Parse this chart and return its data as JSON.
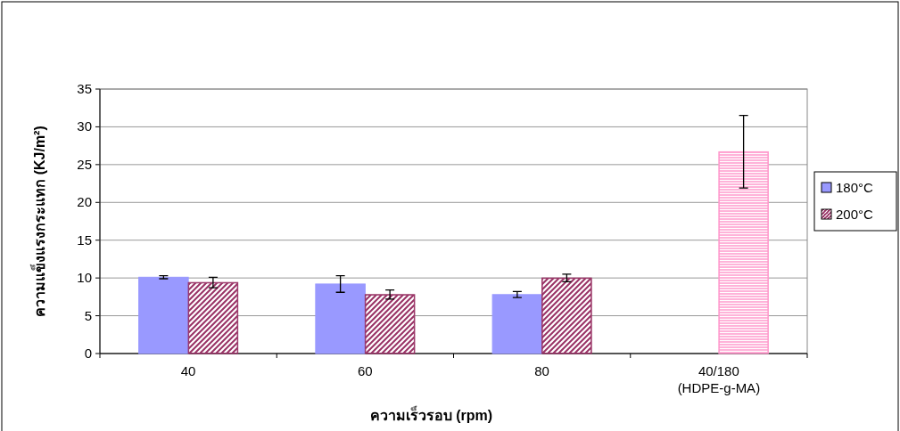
{
  "chart_data": {
    "type": "bar",
    "xlabel": "ความเร็วรอบ (rpm)",
    "ylabel": "ความแข็งแรงกระแทก (KJ/m²)",
    "categories": [
      "40",
      "60",
      "80",
      "40/180\n(HDPE-g-MA)"
    ],
    "series": [
      {
        "name": "180°C",
        "color": "#9999ff",
        "values": [
          10.1,
          9.2,
          7.8,
          null
        ],
        "errors": [
          0.2,
          1.1,
          0.4,
          null
        ]
      },
      {
        "name": "200°C",
        "color": "#993366",
        "values": [
          9.4,
          7.8,
          10.0,
          26.7
        ],
        "errors": [
          0.7,
          0.6,
          0.5,
          4.8
        ],
        "colors": [
          "#993366",
          "#993366",
          "#993366",
          "#ff99cc"
        ]
      }
    ],
    "ylim": [
      0,
      35
    ],
    "yticks": [
      0,
      5,
      10,
      15,
      20,
      25,
      30,
      35
    ],
    "grid": "y",
    "legend": "right"
  }
}
